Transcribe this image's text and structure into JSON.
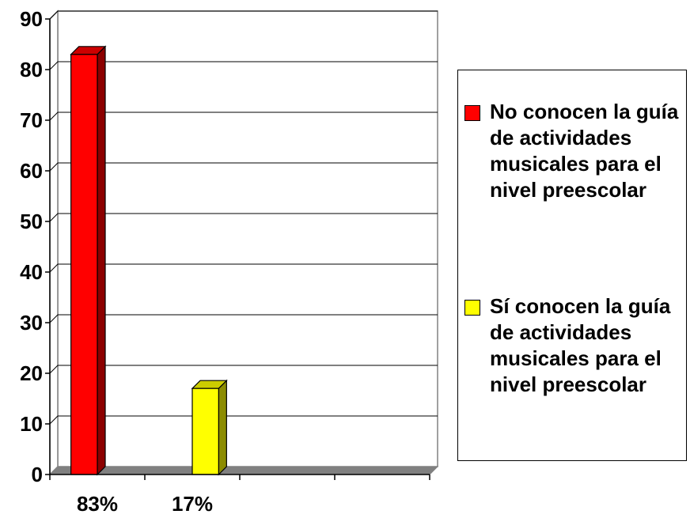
{
  "chart_data": {
    "type": "bar",
    "three_d": true,
    "categories": [
      "83%",
      "17%",
      "",
      ""
    ],
    "series": [
      {
        "name": "No conocen la guía de actividades musicales para el nivel preescolar",
        "color": "#ff0000",
        "values": [
          83,
          null,
          null,
          null
        ]
      },
      {
        "name": "Sí conocen la guía de actividades musicales para el nivel preescolar",
        "color": "#ffff00",
        "values": [
          null,
          17,
          null,
          null
        ]
      }
    ],
    "ylim": [
      0,
      90
    ],
    "yticks": [
      0,
      10,
      20,
      30,
      40,
      50,
      60,
      70,
      80,
      90
    ],
    "grid": true,
    "legend": "right"
  }
}
